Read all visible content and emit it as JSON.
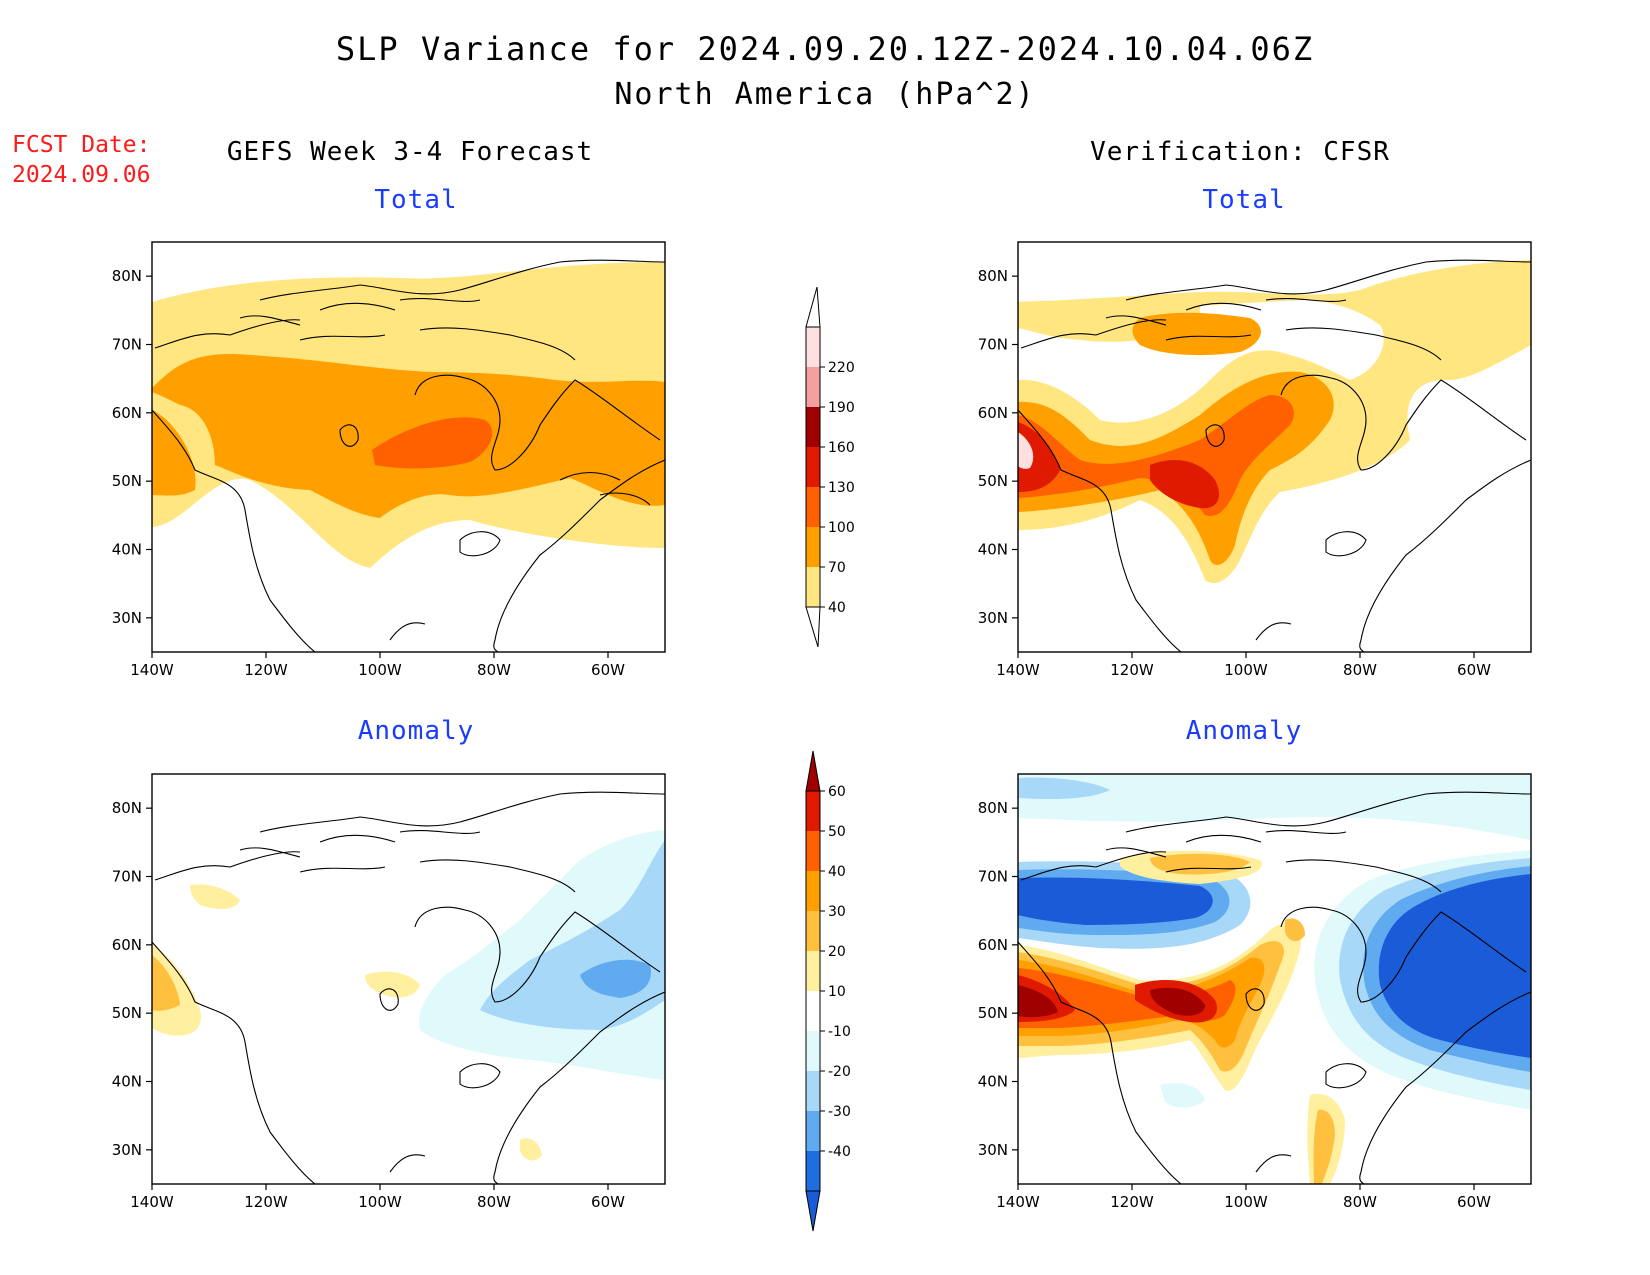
{
  "header": {
    "title": "SLP Variance for 2024.09.20.12Z-2024.10.04.06Z",
    "subtitle": "North America (hPa^2)",
    "fcst_date_label": "FCST Date:",
    "fcst_date_value": "2024.09.06"
  },
  "columns": {
    "left_title": "GEFS Week 3-4 Forecast",
    "right_title": "Verification: CFSR"
  },
  "panels": [
    {
      "id": "fcst-total",
      "title": "Total"
    },
    {
      "id": "verif-total",
      "title": "Total"
    },
    {
      "id": "fcst-anomaly",
      "title": "Anomaly"
    },
    {
      "id": "verif-anomaly",
      "title": "Anomaly"
    }
  ],
  "axes": {
    "lat_ticks": [
      "80N",
      "70N",
      "60N",
      "50N",
      "40N",
      "30N"
    ],
    "lon_ticks": [
      "140W",
      "120W",
      "100W",
      "80W",
      "60W"
    ],
    "lat_values": [
      80,
      70,
      60,
      50,
      40,
      30
    ],
    "lon_values": [
      -140,
      -120,
      -100,
      -80,
      -60
    ],
    "lat_range": [
      25,
      85
    ],
    "lon_range": [
      -140,
      -50
    ]
  },
  "total_colorbar": {
    "levels": [
      "40",
      "70",
      "100",
      "130",
      "160",
      "190",
      "220"
    ],
    "colors": [
      "#ffe680",
      "#ffa000",
      "#ff6000",
      "#e01a00",
      "#a00000",
      "#f4a0a0",
      "#ffe0e0"
    ]
  },
  "anomaly_colorbar": {
    "levels": [
      "60",
      "50",
      "40",
      "30",
      "20",
      "10",
      "-10",
      "-20",
      "-30",
      "-40"
    ],
    "colors": [
      "#a00000",
      "#e01a00",
      "#ff6000",
      "#ffa000",
      "#ffc040",
      "#ffef9e",
      "#ffffff",
      "#e0fafc",
      "#a8d8f8",
      "#60aaf0",
      "#1e6ee0",
      "#1a5cd8"
    ]
  }
}
